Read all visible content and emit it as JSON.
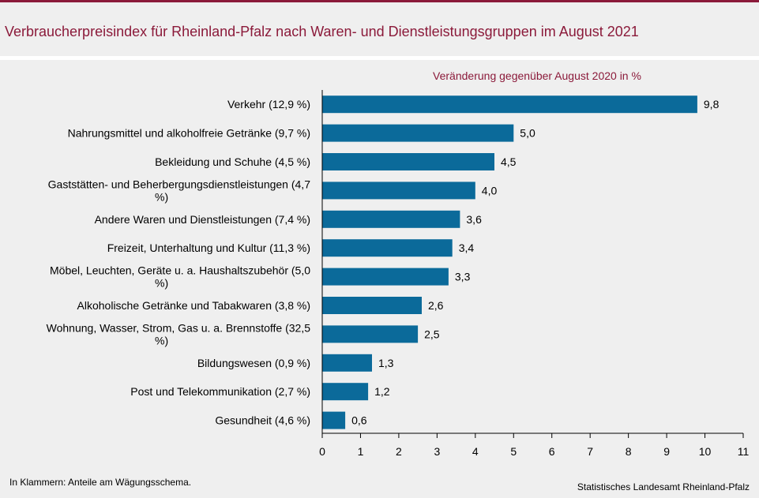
{
  "title": "Verbraucherpreisindex für Rheinland-Pfalz nach Waren- und Dienstleistungsgruppen im August 2021",
  "footnote": "In Klammern: Anteile am Wägungsschema.",
  "source": "Statistisches Landesamt Rheinland-Pfalz",
  "colors": {
    "accent": "#8b1a3a",
    "bar": "#0b6a9a",
    "background": "#efefef"
  },
  "chart_data": {
    "type": "bar",
    "orientation": "horizontal",
    "subtitle": "Veränderung gegenüber August 2020 in %",
    "categories": [
      [
        "Verkehr (12,9 %)"
      ],
      [
        "Nahrungsmittel und alkoholfreie Getränke (9,7 %)"
      ],
      [
        "Bekleidung und Schuhe (4,5 %)"
      ],
      [
        "Gaststätten- und Beherbergungsdienstleistungen (4,7",
        "%)"
      ],
      [
        "Andere Waren und Dienstleistungen (7,4 %)"
      ],
      [
        "Freizeit, Unterhaltung und Kultur (11,3 %)"
      ],
      [
        "Möbel, Leuchten, Geräte u. a. Haushaltszubehör  (5,0",
        "%)"
      ],
      [
        "Alkoholische Getränke und Tabakwaren (3,8 %)"
      ],
      [
        "Wohnung, Wasser, Strom, Gas u. a. Brennstoffe (32,5",
        "%)"
      ],
      [
        "Bildungswesen (0,9 %)"
      ],
      [
        "Post und Telekommunikation (2,7 %)"
      ],
      [
        "Gesundheit (4,6 %)"
      ]
    ],
    "values": [
      9.8,
      5.0,
      4.5,
      4.0,
      3.6,
      3.4,
      3.3,
      2.6,
      2.5,
      1.3,
      1.2,
      0.6
    ],
    "value_labels": [
      "9,8",
      "5,0",
      "4,5",
      "4,0",
      "3,6",
      "3,4",
      "3,3",
      "2,6",
      "2,5",
      "1,3",
      "1,2",
      "0,6"
    ],
    "xlim": [
      0,
      11
    ],
    "xticks": [
      0,
      1,
      2,
      3,
      4,
      5,
      6,
      7,
      8,
      9,
      10,
      11
    ],
    "grid": false,
    "legend": "none"
  }
}
